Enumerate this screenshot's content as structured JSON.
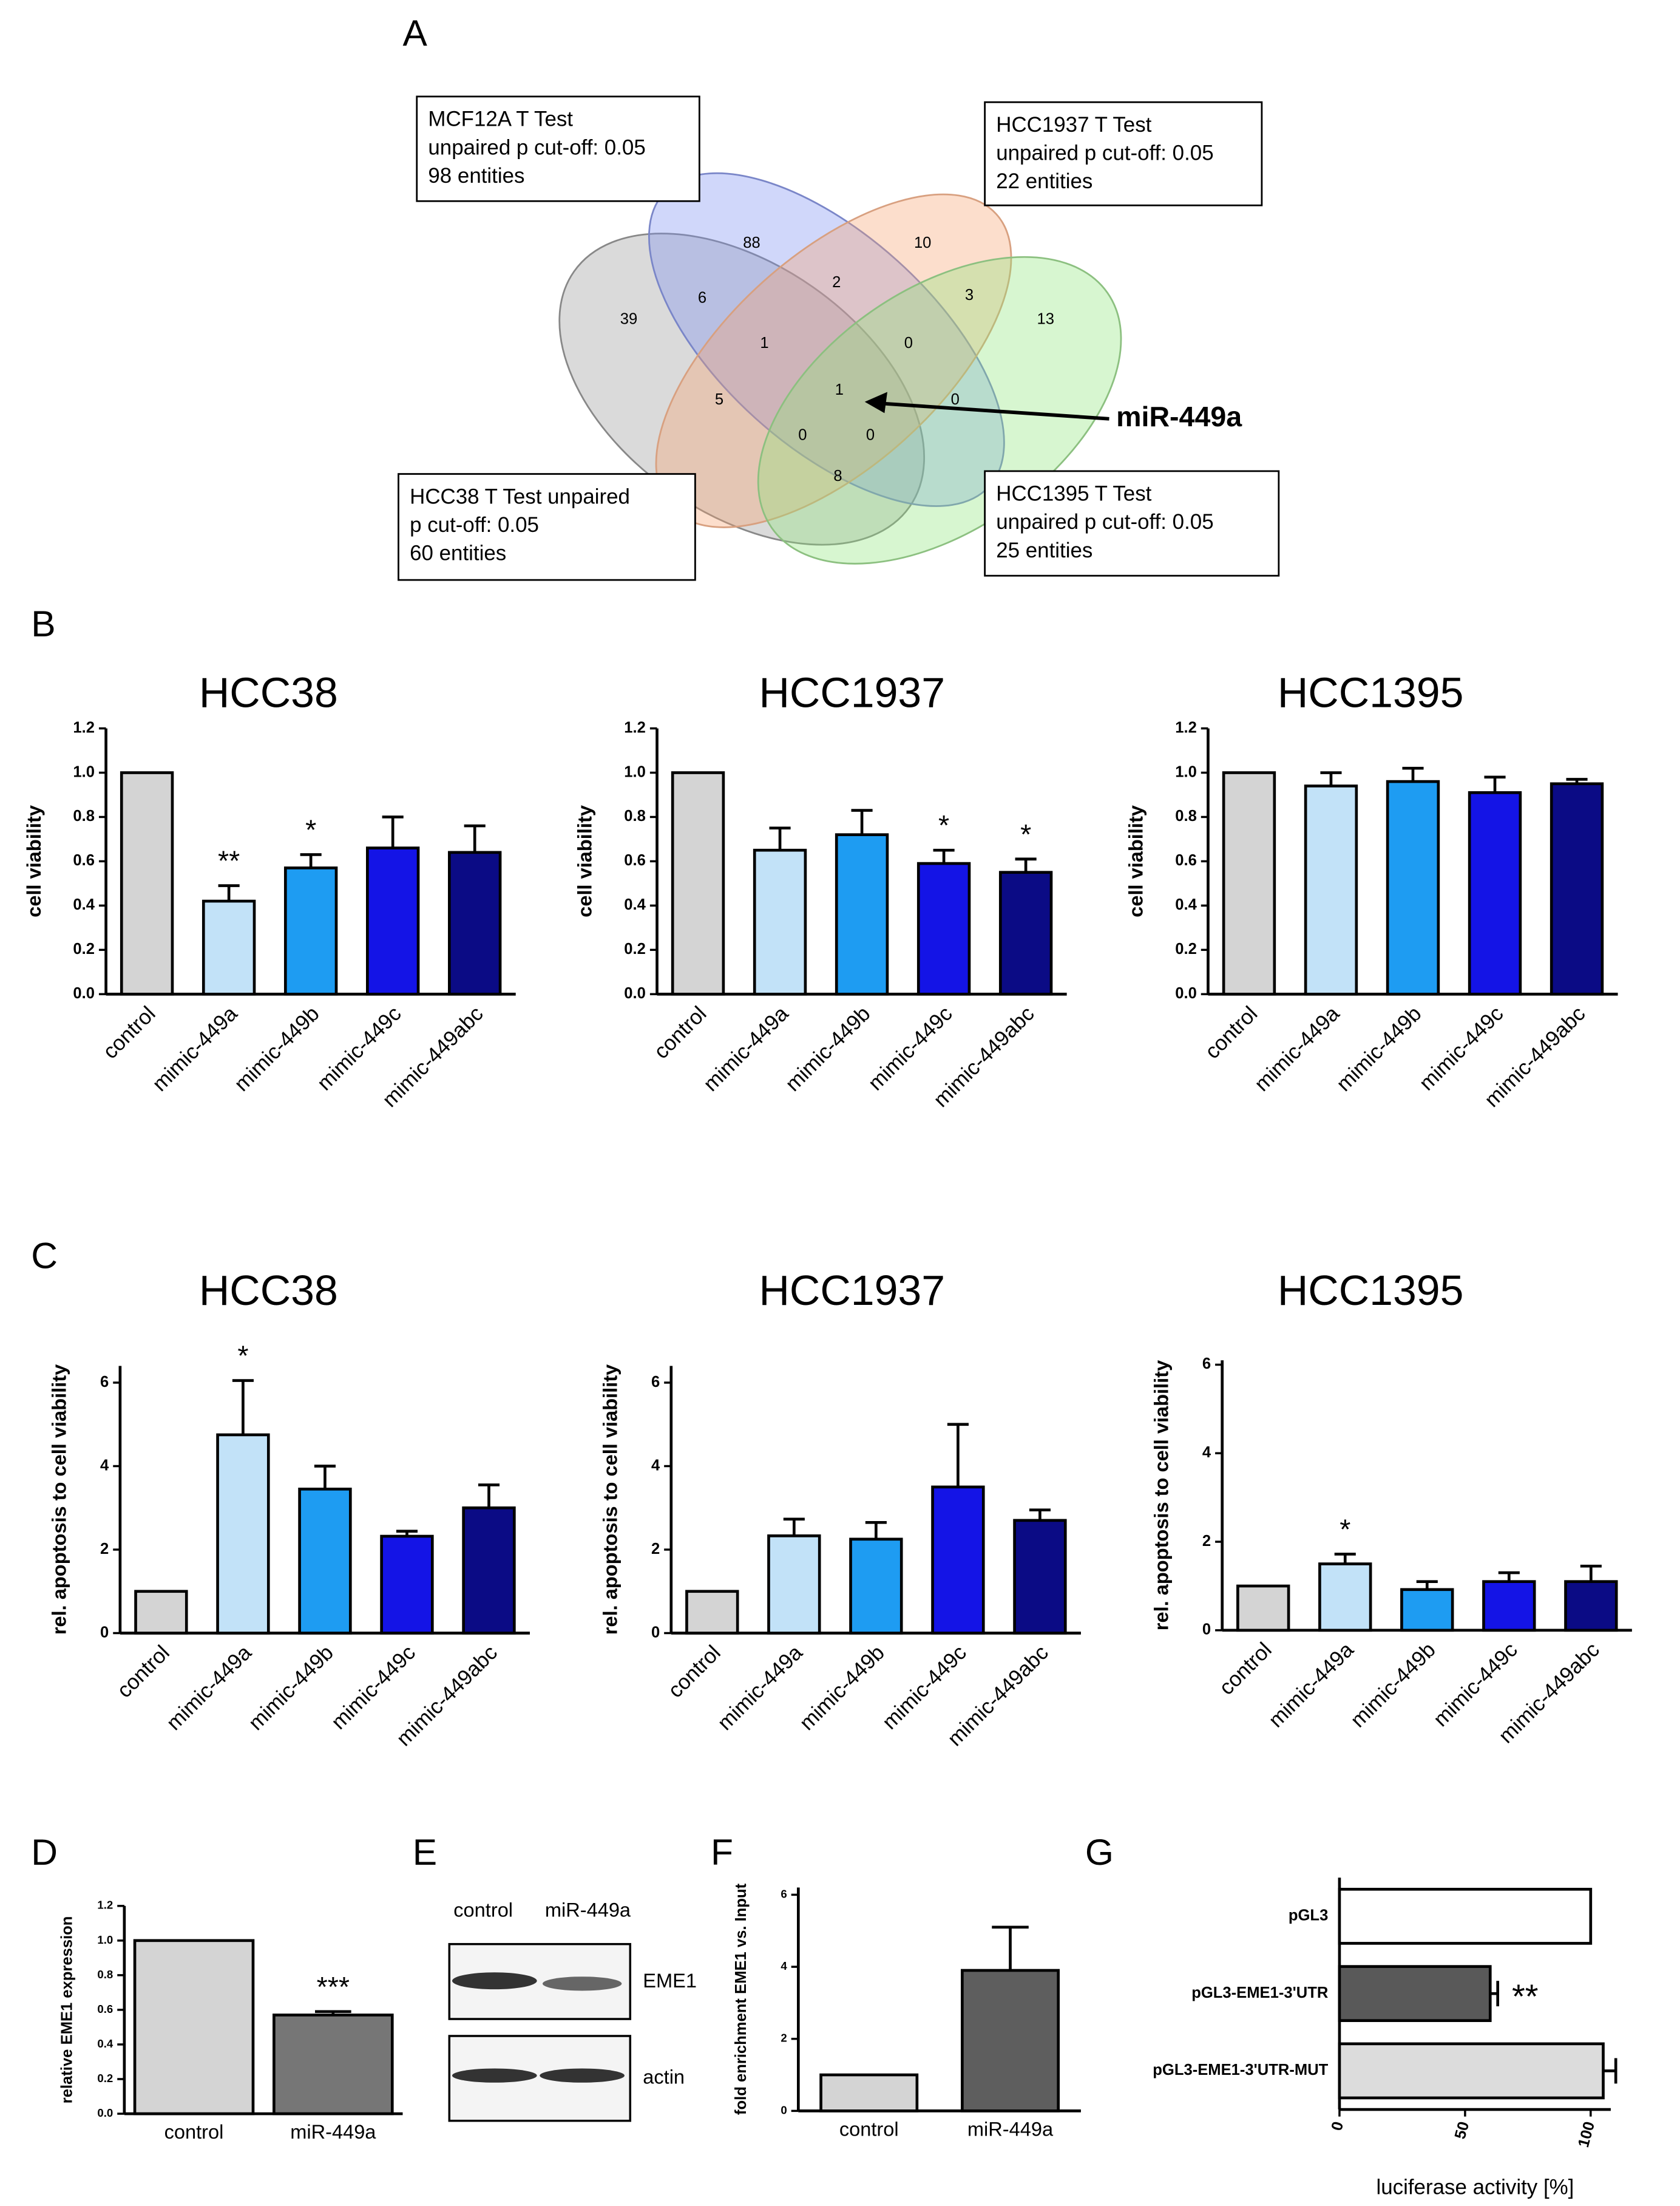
{
  "panel_labels": [
    "A",
    "B",
    "C",
    "D",
    "E",
    "F",
    "G"
  ],
  "venn": {
    "boxes": [
      [
        "MCF12A T Test",
        "unpaired p cut-off: 0.05",
        "98 entities"
      ],
      [
        "HCC1937 T Test",
        "unpaired p cut-off: 0.05",
        "22 entities"
      ],
      [
        "HCC38 T Test unpaired",
        "p cut-off: 0.05",
        "60 entities"
      ],
      [
        "HCC1395 T Test",
        "unpaired p cut-off: 0.05",
        "25 entities"
      ]
    ],
    "regions": [
      39,
      88,
      10,
      13,
      6,
      2,
      3,
      1,
      0,
      5,
      1,
      0,
      0,
      0,
      8
    ],
    "arrow_label": "miR-449a"
  },
  "blot": {
    "lanes": [
      "control",
      "miR-449a"
    ],
    "bands": [
      "EME1",
      "actin"
    ]
  },
  "chart_data": [
    {
      "type": "bar",
      "title": "HCC38",
      "ylabel": "cell viability",
      "categories": [
        "control",
        "mimic-449a",
        "mimic-449b",
        "mimic-449c",
        "mimic-449abc"
      ],
      "values": [
        1.0,
        0.42,
        0.57,
        0.66,
        0.64
      ],
      "errors": [
        null,
        0.07,
        0.06,
        0.14,
        0.12
      ],
      "annotations": [
        null,
        "**",
        "*",
        null,
        null
      ],
      "colors": [
        "#d4d4d4",
        "#c2e2f8",
        "#1e9cf2",
        "#1414e6",
        "#0b0b85"
      ],
      "ylim": [
        0,
        1.2
      ],
      "yticks": [
        {
          "value": 0,
          "label": "0.0"
        },
        0.2,
        0.4,
        0.6,
        0.8,
        {
          "value": 1,
          "label": "1.0"
        },
        1.2
      ]
    },
    {
      "type": "bar",
      "title": "HCC1937",
      "ylabel": "cell viability",
      "categories": [
        "control",
        "mimic-449a",
        "mimic-449b",
        "mimic-449c",
        "mimic-449abc"
      ],
      "values": [
        1.0,
        0.65,
        0.72,
        0.59,
        0.55
      ],
      "errors": [
        null,
        0.1,
        0.11,
        0.06,
        0.06
      ],
      "annotations": [
        null,
        null,
        null,
        "*",
        "*"
      ],
      "colors": [
        "#d4d4d4",
        "#c2e2f8",
        "#1e9cf2",
        "#1414e6",
        "#0b0b85"
      ],
      "ylim": [
        0,
        1.2
      ],
      "yticks": [
        {
          "value": 0,
          "label": "0.0"
        },
        0.2,
        0.4,
        0.6,
        0.8,
        {
          "value": 1,
          "label": "1.0"
        },
        1.2
      ]
    },
    {
      "type": "bar",
      "title": "HCC1395",
      "ylabel": "cell viability",
      "categories": [
        "control",
        "mimic-449a",
        "mimic-449b",
        "mimic-449c",
        "mimic-449abc"
      ],
      "values": [
        1.0,
        0.94,
        0.96,
        0.91,
        0.95
      ],
      "errors": [
        null,
        0.06,
        0.06,
        0.07,
        0.02
      ],
      "annotations": [
        null,
        null,
        null,
        null,
        null
      ],
      "colors": [
        "#d4d4d4",
        "#c2e2f8",
        "#1e9cf2",
        "#1414e6",
        "#0b0b85"
      ],
      "ylim": [
        0,
        1.2
      ],
      "yticks": [
        {
          "value": 0,
          "label": "0.0"
        },
        0.2,
        0.4,
        0.6,
        0.8,
        {
          "value": 1,
          "label": "1.0"
        },
        1.2
      ]
    },
    {
      "type": "bar",
      "title": "HCC38",
      "ylabel": "rel. apoptosis to cell viability",
      "categories": [
        "control",
        "mimic-449a",
        "mimic-449b",
        "mimic-449c",
        "mimic-449abc"
      ],
      "values": [
        1.0,
        4.75,
        3.45,
        2.32,
        3.0
      ],
      "errors": [
        null,
        1.3,
        0.55,
        0.12,
        0.55
      ],
      "annotations": [
        null,
        "*",
        null,
        null,
        null
      ],
      "colors": [
        "#d4d4d4",
        "#c2e2f8",
        "#1e9cf2",
        "#1414e6",
        "#0b0b85"
      ],
      "ylim": [
        0,
        6.4
      ],
      "yticks": [
        0,
        2,
        4,
        6
      ]
    },
    {
      "type": "bar",
      "title": "HCC1937",
      "ylabel": "rel. apoptosis to cell viability",
      "categories": [
        "control",
        "mimic-449a",
        "mimic-449b",
        "mimic-449c",
        "mimic-449abc"
      ],
      "values": [
        1.0,
        2.33,
        2.25,
        3.5,
        2.7
      ],
      "errors": [
        null,
        0.4,
        0.4,
        1.5,
        0.25
      ],
      "annotations": [
        null,
        null,
        null,
        null,
        null
      ],
      "colors": [
        "#d4d4d4",
        "#c2e2f8",
        "#1e9cf2",
        "#1414e6",
        "#0b0b85"
      ],
      "ylim": [
        0,
        6.4
      ],
      "yticks": [
        0,
        2,
        4,
        6
      ]
    },
    {
      "type": "bar",
      "title": "HCC1395",
      "ylabel": "rel. apoptosis to cell viability",
      "categories": [
        "control",
        "mimic-449a",
        "mimic-449b",
        "mimic-449c",
        "mimic-449abc"
      ],
      "values": [
        1.0,
        1.5,
        0.92,
        1.1,
        1.1
      ],
      "errors": [
        null,
        0.22,
        0.18,
        0.2,
        0.35
      ],
      "annotations": [
        null,
        "*",
        null,
        null,
        null
      ],
      "colors": [
        "#d4d4d4",
        "#c2e2f8",
        "#1e9cf2",
        "#1414e6",
        "#0b0b85"
      ],
      "ylim": [
        0,
        6.1
      ],
      "yticks": [
        0,
        2,
        4,
        6
      ]
    },
    {
      "type": "bar",
      "ylabel": "relative EME1 expression",
      "categories": [
        "control",
        "miR-449a"
      ],
      "values": [
        1.0,
        0.57
      ],
      "errors": [
        null,
        0.02
      ],
      "annotations": [
        null,
        "***"
      ],
      "colors": [
        "#d4d4d4",
        "#767676"
      ],
      "ylim": [
        0,
        1.2
      ],
      "yticks": [
        {
          "value": 0,
          "label": "0.0"
        },
        0.2,
        0.4,
        0.6,
        0.8,
        {
          "value": 1,
          "label": "1.0"
        },
        1.2
      ]
    },
    {
      "type": "bar",
      "ylabel": "fold enrichment EME1 vs. Input",
      "categories": [
        "control",
        "miR-449a"
      ],
      "values": [
        1.0,
        3.9
      ],
      "errors": [
        null,
        1.2
      ],
      "annotations": [
        null,
        null
      ],
      "colors": [
        "#d4d4d4",
        "#5e5e5e"
      ],
      "ylim": [
        0,
        6.2
      ],
      "yticks": [
        0,
        2,
        4,
        6
      ]
    },
    {
      "type": "bar",
      "orientation": "horizontal",
      "xlabel": "luciferase activity [%]",
      "categories": [
        "pGL3",
        "pGL3-EME1-3'UTR",
        "pGL3-EME1-3'UTR-MUT"
      ],
      "values": [
        100,
        60,
        105
      ],
      "errors": [
        null,
        3,
        5
      ],
      "annotations": [
        null,
        "**",
        null
      ],
      "colors": [
        "#ffffff",
        "#595959",
        "#dcdcdc"
      ],
      "xlim": [
        0,
        108
      ],
      "xticks": [
        0,
        50,
        100
      ]
    }
  ]
}
